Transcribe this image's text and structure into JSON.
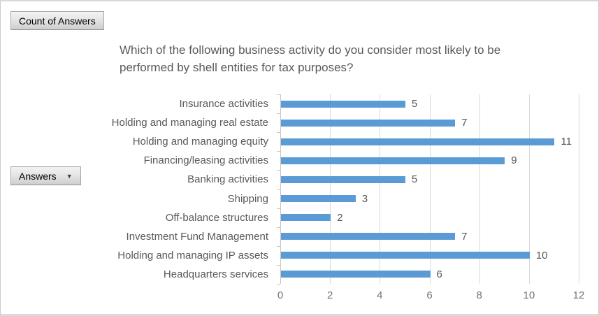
{
  "pivot_table": {
    "value_button": "Count of Answers",
    "axis_button": "Answers",
    "dropdown_glyph": "▼"
  },
  "chart_data": {
    "type": "bar",
    "orientation": "horizontal",
    "title": "Which of the following business activity do you consider most likely to be performed by shell entities for tax purposes?",
    "title_lines": [
      "Which of the following business activity do you consider most likely to be",
      "performed by shell entities for tax purposes?"
    ],
    "categories": [
      "Insurance activities",
      "Holding and managing real estate",
      "Holding and managing equity",
      "Financing/leasing activities",
      "Banking activities",
      "Shipping",
      "Off-balance structures",
      "Investment Fund Management",
      "Holding and managing IP assets",
      "Headquarters services"
    ],
    "values": [
      5,
      7,
      11,
      9,
      5,
      3,
      2,
      7,
      10,
      6
    ],
    "xlim": [
      0,
      12
    ],
    "x_ticks": [
      0,
      2,
      4,
      6,
      8,
      10,
      12
    ],
    "data_labels": true,
    "legend": "none",
    "grid": "vertical",
    "colors": {
      "bar": "#5B9BD5",
      "gridline": "#D9D9D9",
      "axis_line": "#C6C6C6",
      "category_label": "#595959",
      "data_label": "#595959",
      "tick_label": "#737373",
      "title": "#595959"
    }
  }
}
